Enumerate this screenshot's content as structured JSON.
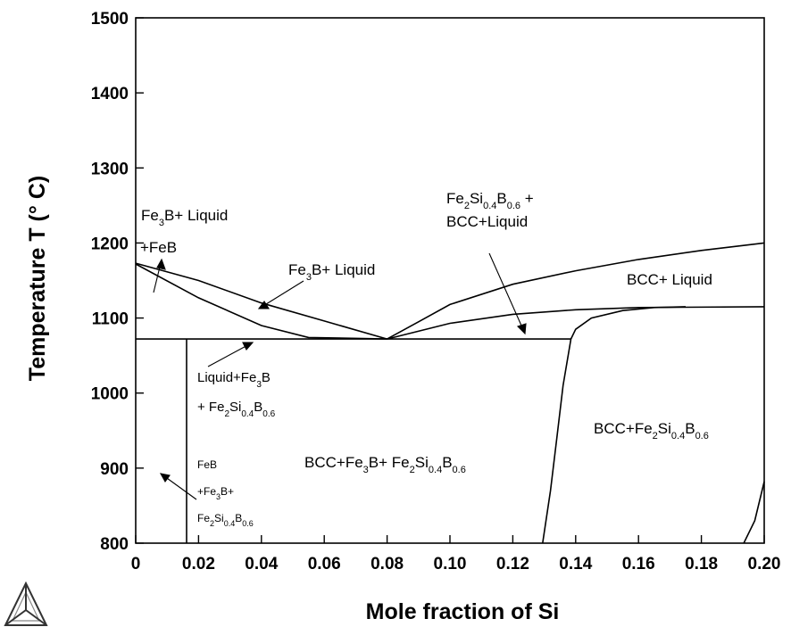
{
  "chart_data": {
    "type": "line",
    "title": "",
    "xlabel": "Mole fraction of Si",
    "ylabel": "Temperature T (° C)",
    "xlim": [
      0,
      0.2
    ],
    "ylim": [
      800,
      1500
    ],
    "x_ticks": [
      "0",
      "0.02",
      "0.04",
      "0.06",
      "0.08",
      "0.10",
      "0.12",
      "0.14",
      "0.16",
      "0.18",
      "0.20"
    ],
    "y_ticks": [
      "800",
      "900",
      "1000",
      "1100",
      "1200",
      "1300",
      "1400",
      "1500"
    ],
    "grid": false,
    "series": [
      {
        "color": "#000000",
        "x": [
          0,
          0.02,
          0.04,
          0.06,
          0.08
        ],
        "y": [
          1173,
          1150,
          1120,
          1096,
          1072
        ]
      },
      {
        "color": "#000000",
        "x": [
          0,
          0.02,
          0.04,
          0.055,
          0.08
        ],
        "y": [
          1172,
          1127,
          1090,
          1074,
          1072
        ]
      },
      {
        "color": "#000000",
        "x": [
          0.08,
          0.09,
          0.1,
          0.12,
          0.14,
          0.16,
          0.18,
          0.2
        ],
        "y": [
          1072,
          1095,
          1118,
          1145,
          1163,
          1178,
          1190,
          1200
        ]
      },
      {
        "color": "#000000",
        "x": [
          0.08,
          0.1,
          0.12,
          0.14,
          0.16,
          0.2
        ],
        "y": [
          1072,
          1093,
          1105,
          1111,
          1114,
          1115
        ]
      },
      {
        "color": "#000000",
        "x": [
          0.1385,
          0.14,
          0.145,
          0.155,
          0.165,
          0.175
        ],
        "y": [
          1072,
          1085,
          1100,
          1110,
          1114,
          1115
        ]
      },
      {
        "color": "#000000",
        "x": [
          0.1295,
          0.132,
          0.134,
          0.136,
          0.1385
        ],
        "y": [
          800,
          870,
          940,
          1010,
          1072
        ]
      },
      {
        "color": "#000000",
        "x": [
          0.0162,
          0.0162
        ],
        "y": [
          800,
          1072
        ]
      },
      {
        "color": "#000000",
        "x": [
          0.1935,
          0.197,
          0.2
        ],
        "y": [
          800,
          830,
          882
        ]
      },
      {
        "color": "#ff0000",
        "x": [
          0,
          0.1385
        ],
        "y": [
          1072,
          1072
        ]
      }
    ],
    "annotations": {
      "fe3b_liquid_1": "Fe3B+ Liquid",
      "feb_plus": "+FeB",
      "fe3b_liquid_2": "Fe3B+ Liquid",
      "fe2si_line1": "Fe2Si0.4B0.6 +",
      "fe2si_line2": "BCC+Liquid",
      "bcc_liquid": "BCC+ Liquid",
      "liquid_fe3b_1": "Liquid+Fe3B",
      "liquid_fe3b_2": "+ Fe2Si0.4B0.6",
      "bcc_fe3b_fe2si": "BCC+Fe3B+ Fe2Si0.4B0.6",
      "bcc_fe2si": "BCC+Fe2Si0.4B0.6",
      "feb_1": "FeB",
      "feb_2": "+Fe3B+",
      "feb_3": "Fe2Si0.4B0.6"
    }
  }
}
